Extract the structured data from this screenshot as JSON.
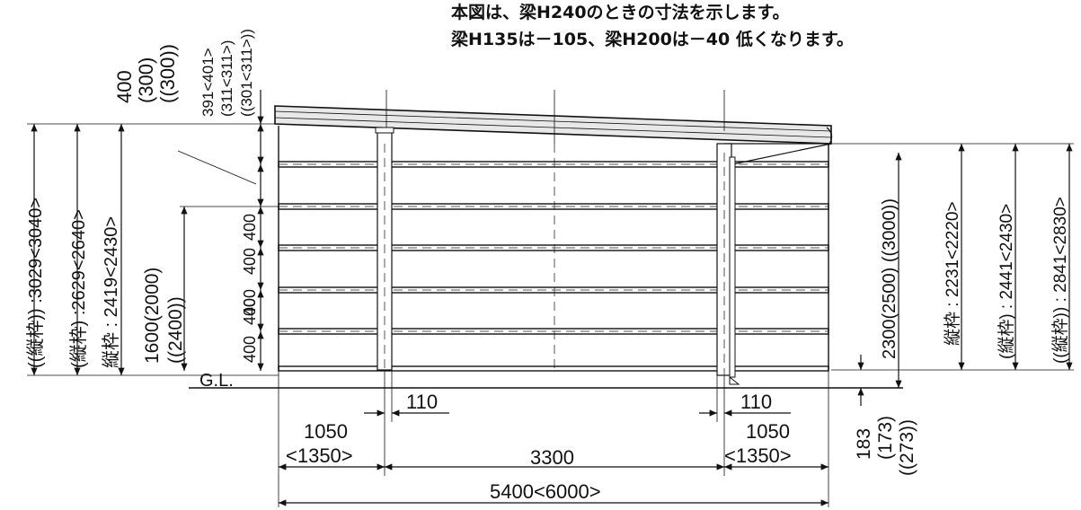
{
  "notes": {
    "line1": "本図は、梁H240のときの寸法を示します。",
    "line2": "梁H135は－105、梁H200は－40 低くなります。"
  },
  "top_dims": {
    "a": "400",
    "b": "(300)",
    "c": "((300))",
    "d": "391<401>",
    "e": "(311<311>)",
    "f": "((301<311>))"
  },
  "left_dims": {
    "total_outer": "((縦枠)) :3029<3040>",
    "total_mid": "(縦枠) :2629<2640>",
    "total_inner": "縦枠 : 2419<2430>",
    "panel_h_a": "1600(2000)",
    "panel_h_b": "((2400))",
    "spacing": [
      "400",
      "400",
      "400",
      "400",
      "400"
    ]
  },
  "right_dims": {
    "height": "2300(2500) ((3000))",
    "frame_a": "縦枠 : 2231<2220>",
    "frame_b": "(縦枠) : 2441<2430>",
    "frame_c": "((縦枠)) : 2841<2830>",
    "gap_a": "183",
    "gap_b": "(173)",
    "gap_c": "((273))"
  },
  "ground": "G.L.",
  "bottom_dims": {
    "post_w_left": "110",
    "post_w_right": "110",
    "end_left_a": "1050",
    "end_left_b": "<1350>",
    "span": "3300",
    "end_right_a": "1050",
    "end_right_b": "<1350>",
    "total": "5400<6000>"
  }
}
